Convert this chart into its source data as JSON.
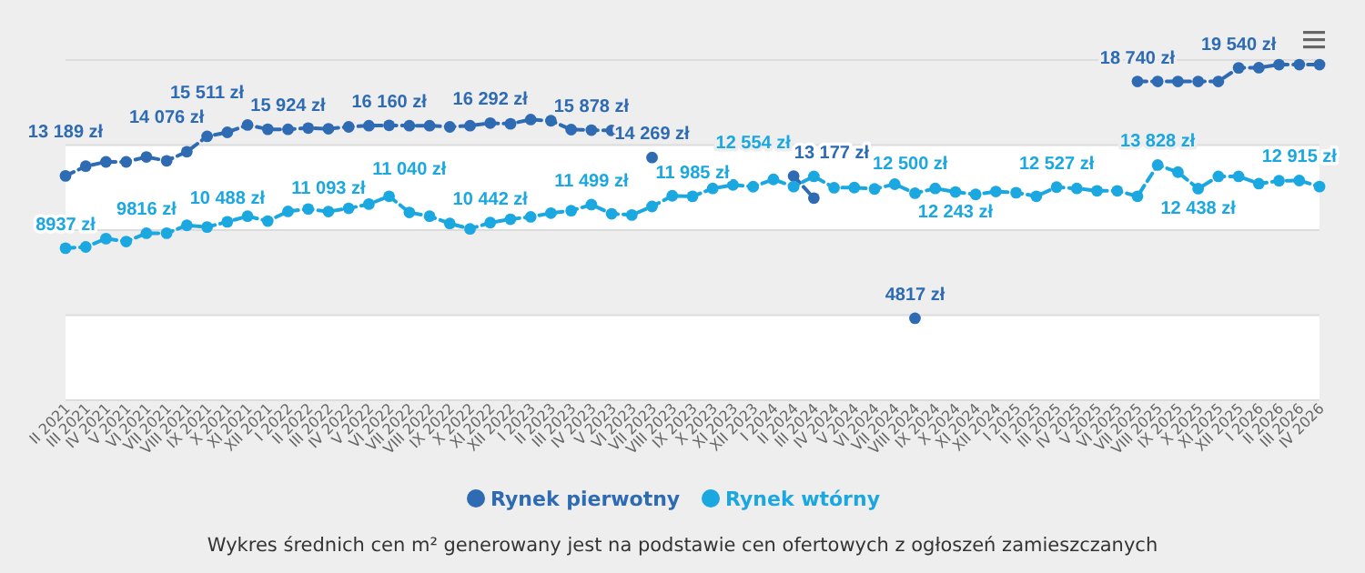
{
  "chart_data": {
    "type": "line",
    "categories": [
      "II 2021",
      "III 2021",
      "IV 2021",
      "V 2021",
      "VI 2021",
      "VII 2021",
      "VIII 2021",
      "IX 2021",
      "X 2021",
      "XI 2021",
      "XII 2021",
      "I 2022",
      "II 2022",
      "III 2022",
      "IV 2022",
      "V 2022",
      "VI 2022",
      "VII 2022",
      "VIII 2022",
      "IX 2022",
      "X 2022",
      "XI 2022",
      "XII 2022",
      "I 2023",
      "II 2023",
      "III 2023",
      "IV 2023",
      "V 2023",
      "VI 2023",
      "VII 2023",
      "VIII 2023",
      "IX 2023",
      "X 2023",
      "XI 2023",
      "XII 2023",
      "I 2024",
      "II 2024",
      "III 2024",
      "IV 2024",
      "V 2024",
      "VI 2024",
      "VII 2024",
      "VIII 2024",
      "IX 2024",
      "X 2024",
      "XI 2024",
      "XII 2024",
      "I 2025",
      "II 2025",
      "III 2025",
      "IV 2025",
      "V 2025",
      "VI 2025",
      "VII 2025",
      "VIII 2025",
      "IX 2025",
      "X 2025",
      "XI 2025",
      "XII 2025",
      "I 2026",
      "II 2026",
      "III 2026",
      "IV 2026"
    ],
    "series": [
      {
        "name": "Rynek pierwotny",
        "color": "#2e6bb3",
        "values": [
          13189,
          13760,
          14010,
          14010,
          14300,
          14076,
          14610,
          15511,
          15750,
          16180,
          15930,
          15924,
          16000,
          15960,
          16070,
          16140,
          16160,
          16140,
          16140,
          16070,
          16140,
          16292,
          16250,
          16500,
          16430,
          15910,
          15878,
          15860,
          null,
          14269,
          null,
          null,
          null,
          null,
          null,
          null,
          13177,
          11880,
          null,
          null,
          null,
          null,
          4817,
          null,
          null,
          null,
          null,
          null,
          null,
          null,
          null,
          null,
          null,
          18740,
          18740,
          18740,
          18740,
          18740,
          19540,
          19550,
          19730,
          19730,
          19730
        ],
        "value_labels": [
          "13 189 zł",
          null,
          null,
          null,
          null,
          "14 076 zł",
          null,
          "15 511 zł",
          null,
          null,
          null,
          "15 924 zł",
          null,
          null,
          null,
          null,
          "16 160 zł",
          null,
          null,
          null,
          null,
          "16 292 zł",
          null,
          null,
          null,
          null,
          "15 878 zł",
          null,
          null,
          "14 269 zł",
          null,
          null,
          null,
          null,
          null,
          null,
          "13 177 zł",
          null,
          null,
          null,
          null,
          null,
          "4817 zł",
          null,
          null,
          null,
          null,
          null,
          null,
          null,
          null,
          null,
          null,
          "18 740 zł",
          null,
          null,
          null,
          null,
          "19 540 zł",
          null,
          null,
          null,
          null
        ]
      },
      {
        "name": "Rynek wtórny",
        "color": "#1ba7e0",
        "values": [
          8937,
          9010,
          9500,
          9330,
          9816,
          9820,
          10280,
          10180,
          10488,
          10820,
          10530,
          11100,
          11240,
          11093,
          11280,
          11530,
          11990,
          11040,
          10820,
          10390,
          10070,
          10442,
          10640,
          10780,
          11000,
          11140,
          11499,
          10960,
          10890,
          11390,
          12020,
          11985,
          12450,
          12660,
          12554,
          12980,
          12560,
          13160,
          12490,
          12500,
          12420,
          12700,
          12170,
          12450,
          12243,
          12100,
          12270,
          12200,
          11990,
          12527,
          12450,
          12310,
          12310,
          11990,
          13828,
          13410,
          12438,
          13160,
          13160,
          12730,
          12900,
          12915,
          12560
        ],
        "value_labels": [
          "8937 zł",
          null,
          null,
          null,
          "9816 zł",
          null,
          null,
          null,
          "10 488 zł",
          null,
          null,
          null,
          null,
          "11 093 zł",
          null,
          null,
          null,
          "11 040 zł",
          null,
          null,
          null,
          "10 442 zł",
          null,
          null,
          null,
          null,
          "11 499 zł",
          null,
          null,
          null,
          null,
          "11 985 zł",
          null,
          null,
          "12 554 zł",
          null,
          null,
          null,
          null,
          "12 500 zł",
          null,
          null,
          null,
          null,
          "12 243 zł",
          null,
          null,
          null,
          null,
          "12 527 zł",
          null,
          null,
          null,
          null,
          "13 828 zł",
          null,
          "12 438 zł",
          null,
          null,
          null,
          null,
          "12 915 zł",
          null
        ]
      }
    ],
    "ylim": [
      0,
      20000
    ],
    "yticks": [
      {
        "value": 0,
        "label": null
      },
      {
        "value": 5000,
        "label": null
      },
      {
        "value": 10000,
        "label": null
      },
      {
        "value": 15000,
        "label": null
      },
      {
        "value": 20000,
        "label": null
      }
    ],
    "grid": "y",
    "tick_labels": "x",
    "bands": [
      {
        "axis": "y",
        "from": 0,
        "to": 5000,
        "color": "#ffffff"
      },
      {
        "axis": "y",
        "from": 10000,
        "to": 15000,
        "color": "#ffffff"
      }
    ],
    "marker": "circle",
    "line_style": "dashed",
    "legend": "bottom",
    "annotations": [
      "Wykres średnich cen m² generowany jest na podstawie cen ofertowych z ogłoszeń zamieszczanych"
    ]
  }
}
